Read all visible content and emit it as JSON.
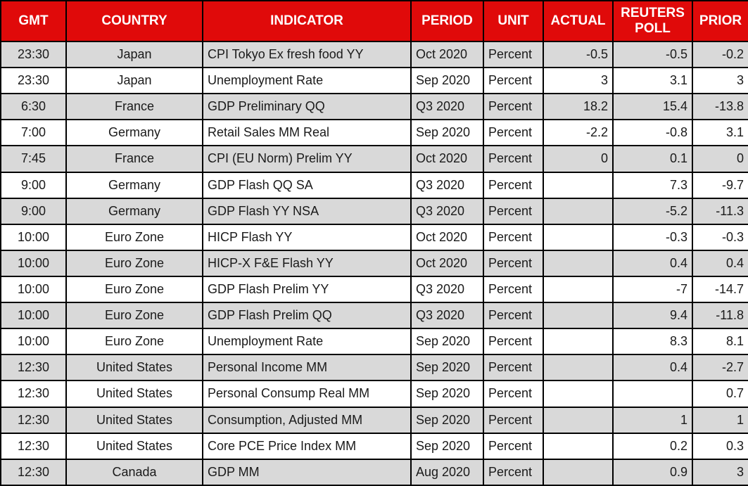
{
  "colors": {
    "header_bg": "#e00a0a",
    "header_text": "#ffffff",
    "stripe_row_bg": "#d9d9d9",
    "plain_row_bg": "#ffffff",
    "grid_line": "#000000",
    "cell_text": "#1a1a1a"
  },
  "chart_data": {
    "type": "table",
    "columns": [
      {
        "key": "gmt",
        "label": "GMT",
        "align": "center"
      },
      {
        "key": "country",
        "label": "COUNTRY",
        "align": "center"
      },
      {
        "key": "indicator",
        "label": "INDICATOR",
        "align": "left"
      },
      {
        "key": "period",
        "label": "PERIOD",
        "align": "left"
      },
      {
        "key": "unit",
        "label": "UNIT",
        "align": "left"
      },
      {
        "key": "actual",
        "label": "ACTUAL",
        "align": "right"
      },
      {
        "key": "reuters_poll",
        "label": "REUTERS POLL",
        "align": "right"
      },
      {
        "key": "prior",
        "label": "PRIOR",
        "align": "right"
      }
    ],
    "rows": [
      [
        "23:30",
        "Japan",
        "CPI Tokyo Ex fresh food YY",
        "Oct 2020",
        "Percent",
        "-0.5",
        "-0.5",
        "-0.2"
      ],
      [
        "23:30",
        "Japan",
        "Unemployment Rate",
        "Sep 2020",
        "Percent",
        "3",
        "3.1",
        "3"
      ],
      [
        "6:30",
        "France",
        "GDP Preliminary QQ",
        "Q3 2020",
        "Percent",
        "18.2",
        "15.4",
        "-13.8"
      ],
      [
        "7:00",
        "Germany",
        "Retail Sales MM Real",
        "Sep 2020",
        "Percent",
        "-2.2",
        "-0.8",
        "3.1"
      ],
      [
        "7:45",
        "France",
        "CPI (EU Norm) Prelim YY",
        "Oct 2020",
        "Percent",
        "0",
        "0.1",
        "0"
      ],
      [
        "9:00",
        "Germany",
        "GDP Flash QQ SA",
        "Q3 2020",
        "Percent",
        "",
        "7.3",
        "-9.7"
      ],
      [
        "9:00",
        "Germany",
        "GDP Flash YY NSA",
        "Q3 2020",
        "Percent",
        "",
        "-5.2",
        "-11.3"
      ],
      [
        "10:00",
        "Euro Zone",
        "HICP Flash YY",
        "Oct 2020",
        "Percent",
        "",
        "-0.3",
        "-0.3"
      ],
      [
        "10:00",
        "Euro Zone",
        "HICP-X F&E Flash YY",
        "Oct 2020",
        "Percent",
        "",
        "0.4",
        "0.4"
      ],
      [
        "10:00",
        "Euro Zone",
        "GDP Flash Prelim YY",
        "Q3 2020",
        "Percent",
        "",
        "-7",
        "-14.7"
      ],
      [
        "10:00",
        "Euro Zone",
        "GDP Flash Prelim QQ",
        "Q3 2020",
        "Percent",
        "",
        "9.4",
        "-11.8"
      ],
      [
        "10:00",
        "Euro Zone",
        "Unemployment Rate",
        "Sep 2020",
        "Percent",
        "",
        "8.3",
        "8.1"
      ],
      [
        "12:30",
        "United States",
        "Personal Income MM",
        "Sep 2020",
        "Percent",
        "",
        "0.4",
        "-2.7"
      ],
      [
        "12:30",
        "United States",
        "Personal Consump Real MM",
        "Sep 2020",
        "Percent",
        "",
        "",
        "0.7"
      ],
      [
        "12:30",
        "United States",
        "Consumption, Adjusted MM",
        "Sep 2020",
        "Percent",
        "",
        "1",
        "1"
      ],
      [
        "12:30",
        "United States",
        "Core PCE Price Index MM",
        "Sep 2020",
        "Percent",
        "",
        "0.2",
        "0.3"
      ],
      [
        "12:30",
        "Canada",
        "GDP MM",
        "Aug 2020",
        "Percent",
        "",
        "0.9",
        "3"
      ]
    ]
  }
}
